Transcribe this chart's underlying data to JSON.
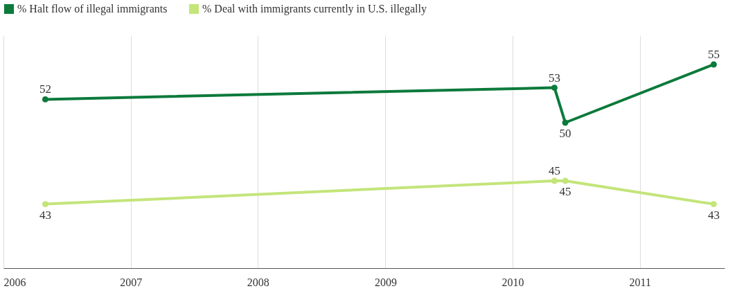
{
  "chart_data": {
    "type": "line",
    "x": [
      "2006-05",
      "2010-05",
      "2010-06",
      "2011-08"
    ],
    "series": [
      {
        "name": "% Halt flow of illegal immigrants",
        "color": "#0b7a3b",
        "values": [
          52,
          53,
          50,
          55
        ]
      },
      {
        "name": "% Deal with immigrants currently in U.S. illegally",
        "color": "#c3e57a",
        "values": [
          43,
          45,
          45,
          43
        ]
      }
    ],
    "xlim": [
      "2006",
      "2011-09"
    ],
    "xticks": [
      "2006",
      "2007",
      "2008",
      "2009",
      "2010",
      "2011"
    ],
    "ylim": [
      37.5,
      57.5
    ],
    "tick_labels": "x",
    "grid": "x",
    "legend": "top left",
    "marker": "circle",
    "line_style": "solid",
    "data_labels": true
  }
}
